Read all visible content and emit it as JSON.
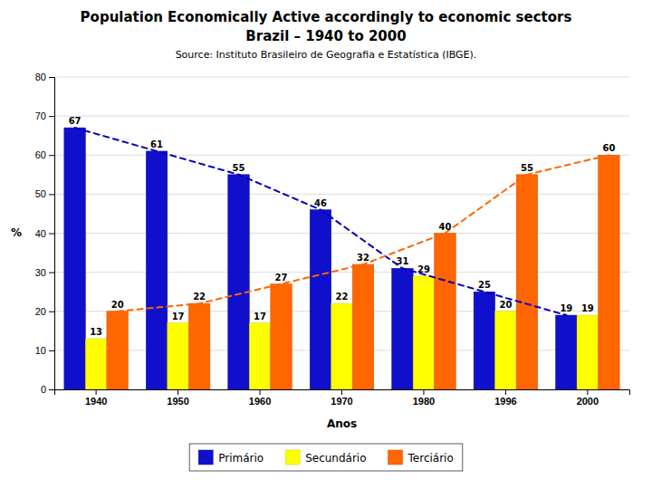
{
  "chart_data": {
    "type": "bar",
    "title": "Population Economically Active accordingly to economic sectors",
    "subtitle": "Brazil – 1940 to 2000",
    "annotations": [
      "Source: Instituto Brasileiro de Geografia e Estatística (IBGE)."
    ],
    "x_label": "Anos",
    "y_label": "%",
    "categories": [
      "1940",
      "1950",
      "1960",
      "1970",
      "1980",
      "1996",
      "2000"
    ],
    "series": [
      {
        "name": "Primário",
        "type": "bar",
        "color": "#1010CC",
        "values": [
          67,
          61,
          55,
          46,
          31,
          25,
          19
        ]
      },
      {
        "name": "Secundário",
        "type": "bar",
        "color": "#FFFF00",
        "values": [
          13,
          17,
          17,
          22,
          29,
          20,
          19
        ]
      },
      {
        "name": "Terciário",
        "type": "bar",
        "color": "#FF6600",
        "values": [
          20,
          22,
          27,
          32,
          40,
          55,
          60
        ]
      },
      {
        "type": "line",
        "line_style": "dashed",
        "color": "#0000BB",
        "values": [
          67,
          61,
          55,
          46,
          31,
          25,
          19
        ]
      },
      {
        "type": "line",
        "line_style": "dashed",
        "color": "#FF6600",
        "values": [
          20,
          22,
          27,
          32,
          40,
          55,
          60
        ]
      }
    ],
    "ylim": [
      0,
      80
    ],
    "yticks": [
      0,
      10,
      20,
      30,
      40,
      50,
      60,
      70,
      80
    ],
    "grid": true,
    "data_labels": true,
    "legend": "bottom"
  }
}
